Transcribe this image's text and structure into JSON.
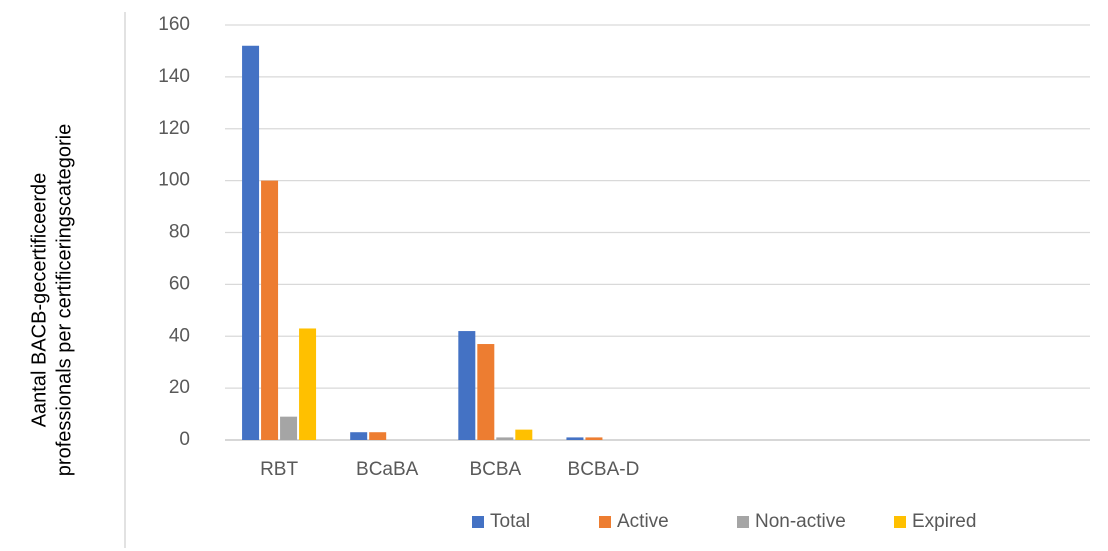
{
  "chart_data": {
    "type": "bar",
    "ylabel": [
      "Aantal BACB-gecertificeerde",
      "professionals per certificeringscategorie"
    ],
    "categories": [
      "RBT",
      "BCaBA",
      "BCBA",
      "BCBA-D",
      null,
      null,
      null,
      null
    ],
    "series": [
      {
        "name": "Total",
        "color": "#4472c4",
        "values": [
          152,
          3,
          42,
          1,
          null,
          null,
          null,
          null
        ]
      },
      {
        "name": "Active",
        "color": "#ed7d31",
        "values": [
          100,
          3,
          37,
          1,
          null,
          null,
          null,
          null
        ]
      },
      {
        "name": "Non-active",
        "color": "#a5a5a5",
        "values": [
          9,
          0,
          1,
          0,
          null,
          null,
          null,
          null
        ]
      },
      {
        "name": "Expired",
        "color": "#ffc000",
        "values": [
          43,
          0,
          4,
          0,
          null,
          null,
          null,
          null
        ]
      }
    ],
    "ylim": [
      0,
      160
    ],
    "yticks": [
      0,
      20,
      40,
      60,
      80,
      100,
      120,
      140,
      160
    ],
    "grid": true,
    "legend": "bottom"
  }
}
